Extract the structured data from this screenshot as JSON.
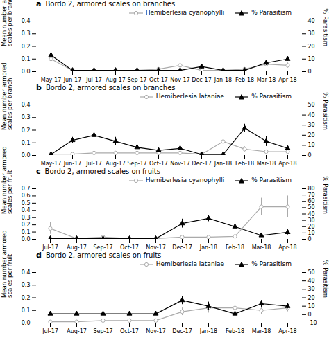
{
  "chart_data": [
    {
      "type": "line",
      "panel_label": "a",
      "title": "Bordo 2, armored scales on branches",
      "categories": [
        "May-17",
        "Jun-17",
        "Jul-17",
        "Aug-17",
        "Sep-17",
        "Oct-17",
        "Nov-17",
        "Dec-17",
        "Jan-18",
        "Feb-18",
        "Mar-18",
        "Apr-18"
      ],
      "ylabel": "Mean number armored\nscales per branch",
      "y2label": "% Parasitism",
      "ylim": [
        0,
        0.4
      ],
      "yticks": [
        {
          "value": 0.0,
          "label": "0.0"
        },
        0.1,
        0.2,
        0.3,
        0.4
      ],
      "y2lim": [
        0,
        40
      ],
      "y2ticks": [
        0,
        10,
        20,
        30,
        40
      ],
      "legend": "upper right",
      "series": [
        {
          "name": "Hemiberlesia cyanophylli",
          "color": "#aaaaaa",
          "marker": "circle",
          "axis": "y",
          "values": [
            0.1,
            0.01,
            0.01,
            0.01,
            0.01,
            0.02,
            0.05,
            0.01,
            0.01,
            0.02,
            0.06,
            0.05
          ],
          "errors": [
            0.03,
            0.005,
            0.005,
            0.005,
            0.005,
            0.01,
            0.02,
            0.005,
            0.005,
            0.005,
            0.02,
            0.02
          ]
        },
        {
          "name": "% Parasitism",
          "color": "#000000",
          "marker": "triangle",
          "axis": "y2",
          "values": [
            13,
            1,
            1,
            1,
            1,
            1,
            1,
            4,
            1,
            1,
            7,
            10
          ],
          "errors": [
            2,
            0.5,
            0.5,
            0.5,
            0.5,
            0.5,
            0.5,
            1.5,
            0.5,
            0.5,
            2,
            1.5
          ]
        }
      ]
    },
    {
      "type": "line",
      "panel_label": "b",
      "title": "Bordo 2, armored scales on branches",
      "categories": [
        "May-17",
        "Jun-17",
        "Jul-17",
        "Aug-17",
        "Sep-17",
        "Oct-17",
        "Nov-17",
        "Dec-17",
        "Jan-18",
        "Feb-18",
        "Mar-18",
        "Apr-18"
      ],
      "ylabel": "Mean number armored\nscales per branch",
      "y2label": "% Parasitism",
      "ylim": [
        0,
        0.4
      ],
      "yticks": [
        {
          "value": 0.0,
          "label": "0.0"
        },
        0.1,
        0.2,
        0.3,
        0.4
      ],
      "y2lim": [
        0,
        50
      ],
      "y2ticks": [
        0,
        10,
        20,
        30,
        40,
        50
      ],
      "legend": "upper right",
      "series": [
        {
          "name": "Hemiberlesia lataniae",
          "color": "#aaaaaa",
          "marker": "circle",
          "axis": "y",
          "values": [
            0.01,
            0.01,
            0.02,
            0.02,
            0.02,
            0.02,
            0.02,
            0.01,
            0.11,
            0.05,
            0.03,
            0.03
          ],
          "errors": [
            0.005,
            0.005,
            0.01,
            0.01,
            0.01,
            0.01,
            0.01,
            0.005,
            0.04,
            0.02,
            0.01,
            0.01
          ]
        },
        {
          "name": "% Parasitism",
          "color": "#000000",
          "marker": "triangle",
          "axis": "y2",
          "values": [
            1,
            15,
            20,
            14,
            8,
            5,
            7,
            1,
            1,
            27,
            14,
            7
          ],
          "errors": [
            0.5,
            3,
            2,
            4,
            3,
            1.5,
            2,
            0.5,
            0.5,
            4,
            5,
            2
          ]
        }
      ]
    },
    {
      "type": "line",
      "panel_label": "c",
      "title": "Bordo 2, armored scales on fruits",
      "categories": [
        "Jul-17",
        "Aug-17",
        "Sep-17",
        "Oct-17",
        "Nov-17",
        "Dec-17",
        "Jan-18",
        "Feb-18",
        "Mar-18",
        "Apr-18"
      ],
      "ylabel": "Mean number armored\nscales per fruit",
      "y2label": "% Parasitism",
      "ylim": [
        0,
        0.7
      ],
      "yticks": [
        {
          "value": 0.0,
          "label": "0.0"
        },
        0.1,
        0.2,
        0.3,
        0.4,
        0.5,
        0.6,
        0.7
      ],
      "y2lim": [
        0,
        80
      ],
      "y2ticks": [
        0,
        10,
        20,
        30,
        40,
        50,
        60,
        70,
        80
      ],
      "legend": "upper right",
      "series": [
        {
          "name": "Hemiberlesia cyanophylli",
          "color": "#aaaaaa",
          "marker": "circle",
          "axis": "y",
          "values": [
            0.15,
            0.01,
            0.03,
            0.01,
            0.01,
            0.03,
            0.03,
            0.04,
            0.45,
            0.45
          ],
          "errors": [
            0.08,
            0.005,
            0.01,
            0.005,
            0.005,
            0.01,
            0.01,
            0.02,
            0.12,
            0.15
          ]
        },
        {
          "name": "% Parasitism",
          "color": "#000000",
          "marker": "triangle",
          "axis": "y2",
          "values": [
            1,
            1,
            1,
            1,
            1,
            25,
            33,
            20,
            6,
            11
          ],
          "errors": [
            0.5,
            0.5,
            0.5,
            0.5,
            0.5,
            7,
            5,
            4,
            2,
            4
          ]
        }
      ]
    },
    {
      "type": "line",
      "panel_label": "d",
      "title": "Bordo 2, armored scales on fruits",
      "categories": [
        "Jul-17",
        "Aug-17",
        "Sep-17",
        "Oct-17",
        "Nov-17",
        "Dec-17",
        "Jan-18",
        "Feb-18",
        "Mar-18",
        "Apr-18"
      ],
      "ylabel": "Mean number armored\nscales per fruit",
      "y2label": "% Parasitism",
      "ylim": [
        0,
        0.4
      ],
      "yticks": [
        {
          "value": 0.0,
          "label": "0.0"
        },
        0.1,
        0.2,
        0.3,
        0.4
      ],
      "y2lim": [
        -10,
        50
      ],
      "y2ticks": [
        -10,
        0,
        10,
        20,
        30,
        40,
        50
      ],
      "legend": "upper right",
      "series": [
        {
          "name": "Hemiberlesia lataniae",
          "color": "#aaaaaa",
          "marker": "circle",
          "axis": "y",
          "values": [
            0.01,
            0.01,
            0.02,
            0.02,
            0.02,
            0.09,
            0.12,
            0.12,
            0.1,
            0.12
          ],
          "errors": [
            0.005,
            0.005,
            0.005,
            0.005,
            0.005,
            0.03,
            0.04,
            0.03,
            0.03,
            0.03
          ]
        },
        {
          "name": "% Parasitism",
          "color": "#000000",
          "marker": "triangle",
          "axis": "y2",
          "values": [
            1,
            1,
            1,
            1,
            1,
            17,
            10,
            1,
            13,
            10
          ],
          "errors": [
            0.5,
            0.5,
            0.5,
            0.5,
            0.5,
            5,
            5,
            1.5,
            4,
            3
          ]
        }
      ]
    }
  ]
}
